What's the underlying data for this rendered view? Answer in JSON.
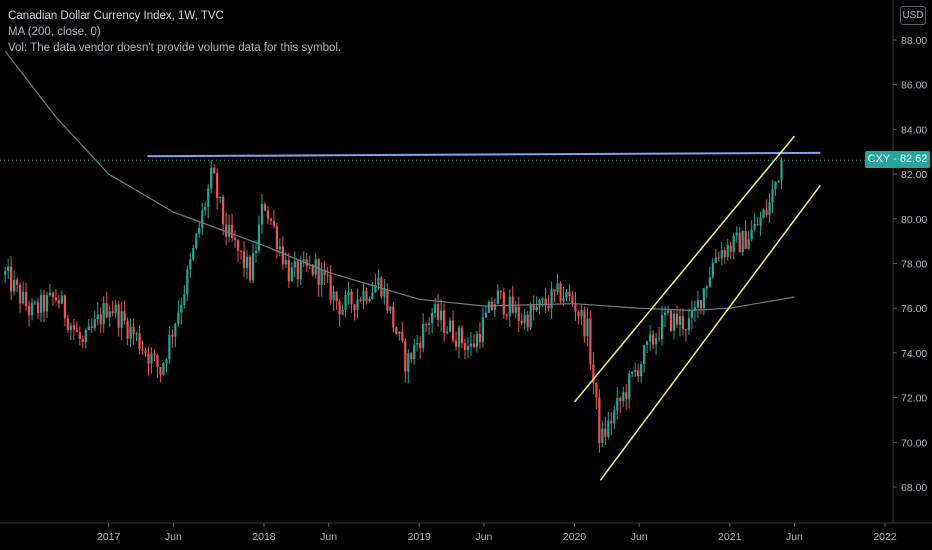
{
  "header": {
    "title": "Canadian Dollar Currency Index, 1W, TVC",
    "ma_label": "MA (200, close, 0)",
    "vol_label": "Vol: The data vendor doesn't provide volume data for this symbol."
  },
  "price_scale": {
    "currency": "USD"
  },
  "last_price": {
    "label": "CXY - 82.62",
    "value": 82.62,
    "color": "#26a69a"
  },
  "colors": {
    "up": "#26a69a",
    "down": "#ef5350",
    "ma": "#787b86",
    "resistance": "#7aa5e8",
    "channel": "#fff176"
  },
  "chart_data": {
    "type": "candlestick",
    "ylim": [
      66.5,
      89.5
    ],
    "y_ticks": [
      "88.00",
      "86.00",
      "84.00",
      "82.00",
      "80.00",
      "78.00",
      "76.00",
      "74.00",
      "72.00",
      "70.00",
      "68.00"
    ],
    "y_tick_values": [
      88,
      86,
      84,
      82,
      80,
      78,
      76,
      74,
      72,
      70,
      68
    ],
    "x_ticks": [
      "2017",
      "Jun",
      "2018",
      "Jun",
      "2019",
      "Jun",
      "2020",
      "Jun",
      "2021",
      "Jun",
      "2022"
    ],
    "x_tick_dates": [
      "2017-01",
      "2017-06",
      "2018-01",
      "2018-06",
      "2019-01",
      "2019-06",
      "2020-01",
      "2020-06",
      "2021-01",
      "2021-06",
      "2022-01"
    ],
    "price_anchors": [
      [
        "2016-05",
        77.5
      ],
      [
        "2016-07",
        75.8
      ],
      [
        "2016-09",
        76.5
      ],
      [
        "2016-11",
        74.3
      ],
      [
        "2017-01",
        76.2
      ],
      [
        "2017-03",
        74.8
      ],
      [
        "2017-05",
        73.2
      ],
      [
        "2017-07",
        77.2
      ],
      [
        "2017-09",
        82.0
      ],
      [
        "2017-10",
        79.5
      ],
      [
        "2017-12",
        77.5
      ],
      [
        "2018-01",
        80.8
      ],
      [
        "2018-03",
        77.5
      ],
      [
        "2018-05",
        77.8
      ],
      [
        "2018-07",
        76.0
      ],
      [
        "2018-10",
        77.2
      ],
      [
        "2018-12",
        73.5
      ],
      [
        "2019-02",
        75.8
      ],
      [
        "2019-05",
        74.2
      ],
      [
        "2019-07",
        76.5
      ],
      [
        "2019-09",
        75.5
      ],
      [
        "2019-12",
        76.7
      ],
      [
        "2020-01",
        76.2
      ],
      [
        "2020-02",
        75.0
      ],
      [
        "2020-03",
        70.0
      ],
      [
        "2020-04",
        71.2
      ],
      [
        "2020-06",
        73.5
      ],
      [
        "2020-08",
        75.5
      ],
      [
        "2020-10",
        75.3
      ],
      [
        "2020-12",
        78.5
      ],
      [
        "2021-02",
        79.0
      ],
      [
        "2021-03",
        79.6
      ],
      [
        "2021-04",
        80.5
      ],
      [
        "2021-05",
        82.62
      ]
    ],
    "ma_line": [
      [
        "2016-05",
        87.5
      ],
      [
        "2016-09",
        84.5
      ],
      [
        "2017-01",
        82.0
      ],
      [
        "2017-06",
        80.3
      ],
      [
        "2018-01",
        78.8
      ],
      [
        "2018-06",
        77.6
      ],
      [
        "2019-01",
        76.4
      ],
      [
        "2019-06",
        76.1
      ],
      [
        "2020-01",
        76.2
      ],
      [
        "2020-06",
        76.0
      ],
      [
        "2020-10",
        75.9
      ],
      [
        "2021-01",
        76.0
      ],
      [
        "2021-06",
        76.5
      ]
    ],
    "resistance_line": [
      [
        "2017-04",
        82.8
      ],
      [
        "2021-08",
        82.95
      ]
    ],
    "channel_upper": [
      [
        "2020-01",
        71.8
      ],
      [
        "2021-06",
        83.7
      ]
    ],
    "channel_lower": [
      [
        "2020-03",
        68.3
      ],
      [
        "2021-08",
        81.5
      ]
    ]
  }
}
